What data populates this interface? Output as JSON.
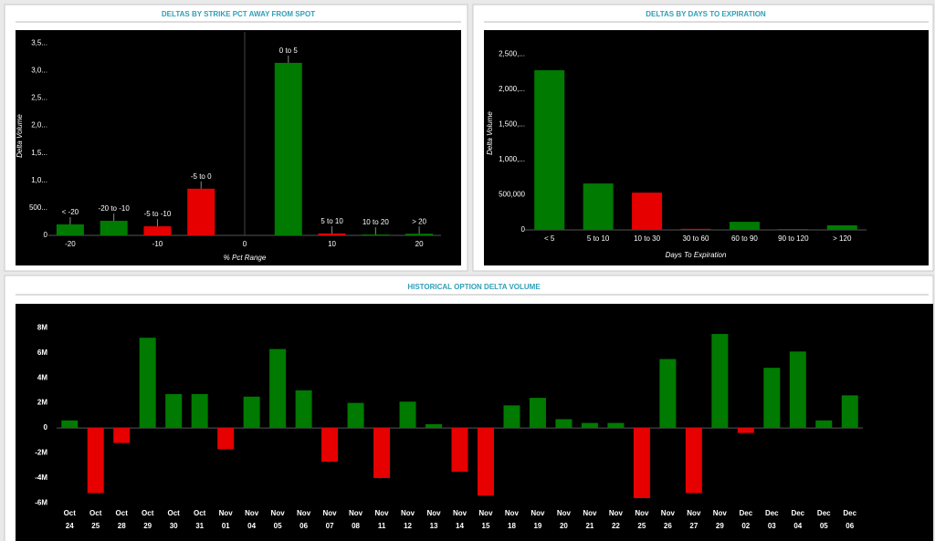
{
  "chart_data": [
    {
      "type": "bar",
      "title": "DELTAS BY STRIKE PCT AWAY FROM SPOT",
      "xlabel": "% Pct Range",
      "ylabel": "Delta Volume",
      "categories": [
        "< -20",
        "-20 to -10",
        "-5 to -10",
        "-5 to 0",
        "0 to 5",
        "5 to 10",
        "10 to 20",
        "> 20"
      ],
      "x": [
        -20,
        -15,
        -10,
        -5,
        5,
        10,
        15,
        20
      ],
      "values": [
        200,
        265,
        165,
        850,
        3140,
        35,
        15,
        30
      ],
      "colors": [
        "#007a00",
        "#007a00",
        "#e60000",
        "#e60000",
        "#007a00",
        "#e60000",
        "#007a00",
        "#007a00"
      ],
      "xlim": [
        -22.5,
        22.5
      ],
      "xticks": [
        -20,
        -10,
        0,
        10,
        20
      ],
      "ylim": [
        0,
        3620
      ],
      "yticks": [
        0,
        {
          "value": 500,
          "label": "500..."
        },
        {
          "value": 1000,
          "label": "1,0..."
        },
        {
          "value": 1500,
          "label": "1,5..."
        },
        {
          "value": 2000,
          "label": "2,0..."
        },
        {
          "value": 2500,
          "label": "2,5..."
        },
        {
          "value": 3000,
          "label": "3,0..."
        },
        {
          "value": 3500,
          "label": "3,5..."
        }
      ]
    },
    {
      "type": "bar",
      "title": "DELTAS BY DAYS TO EXPIRATION",
      "xlabel": "Days To Expiration",
      "ylabel": "Delta Volume",
      "categories": [
        "< 5",
        "5 to 10",
        "10 to 30",
        "30 to 60",
        "60 to 90",
        "90 to 120",
        "> 120"
      ],
      "values": [
        2270000,
        660000,
        530000,
        15000,
        115000,
        12000,
        65000
      ],
      "colors": [
        "#007a00",
        "#007a00",
        "#e60000",
        "#e60000",
        "#007a00",
        "#e60000",
        "#007a00"
      ],
      "ylim": [
        0,
        2750000
      ],
      "yticks": [
        0,
        {
          "value": 500000,
          "label": "500,000"
        },
        {
          "value": 1000000,
          "label": "1,000,..."
        },
        {
          "value": 1500000,
          "label": "1,500,..."
        },
        {
          "value": 2000000,
          "label": "2,000,..."
        },
        {
          "value": 2500000,
          "label": "2,500,..."
        }
      ]
    },
    {
      "type": "bar",
      "title": "HISTORICAL OPTION DELTA VOLUME",
      "categories": [
        [
          "Oct",
          "24"
        ],
        [
          "Oct",
          "25"
        ],
        [
          "Oct",
          "28"
        ],
        [
          "Oct",
          "29"
        ],
        [
          "Oct",
          "30"
        ],
        [
          "Oct",
          "31"
        ],
        [
          "Nov",
          "01"
        ],
        [
          "Nov",
          "04"
        ],
        [
          "Nov",
          "05"
        ],
        [
          "Nov",
          "06"
        ],
        [
          "Nov",
          "07"
        ],
        [
          "Nov",
          "08"
        ],
        [
          "Nov",
          "11"
        ],
        [
          "Nov",
          "12"
        ],
        [
          "Nov",
          "13"
        ],
        [
          "Nov",
          "14"
        ],
        [
          "Nov",
          "15"
        ],
        [
          "Nov",
          "18"
        ],
        [
          "Nov",
          "19"
        ],
        [
          "Nov",
          "20"
        ],
        [
          "Nov",
          "21"
        ],
        [
          "Nov",
          "22"
        ],
        [
          "Nov",
          "25"
        ],
        [
          "Nov",
          "26"
        ],
        [
          "Nov",
          "27"
        ],
        [
          "Nov",
          "29"
        ],
        [
          "Dec",
          "02"
        ],
        [
          "Dec",
          "03"
        ],
        [
          "Dec",
          "04"
        ],
        [
          "Dec",
          "05"
        ],
        [
          "Dec",
          "06"
        ]
      ],
      "values": [
        600000,
        -5200000,
        -1200000,
        7200000,
        2700000,
        2700000,
        -1700000,
        2500000,
        6300000,
        3000000,
        -2700000,
        2000000,
        -4000000,
        2100000,
        300000,
        -3500000,
        -5400000,
        1800000,
        2400000,
        700000,
        400000,
        400000,
        -5600000,
        5500000,
        -5200000,
        7500000,
        -400000,
        4800000,
        6100000,
        600000,
        2600000
      ],
      "colors": {
        "positive": "#007a00",
        "negative": "#e60000"
      },
      "ylim": [
        -6300000,
        9400000
      ],
      "yticks": [
        {
          "value": -6000000,
          "label": "-6M"
        },
        {
          "value": -4000000,
          "label": "-4M"
        },
        {
          "value": -2000000,
          "label": "-2M"
        },
        0,
        {
          "value": 2000000,
          "label": "2M"
        },
        {
          "value": 4000000,
          "label": "4M"
        },
        {
          "value": 6000000,
          "label": "6M"
        },
        {
          "value": 8000000,
          "label": "8M"
        }
      ]
    }
  ]
}
